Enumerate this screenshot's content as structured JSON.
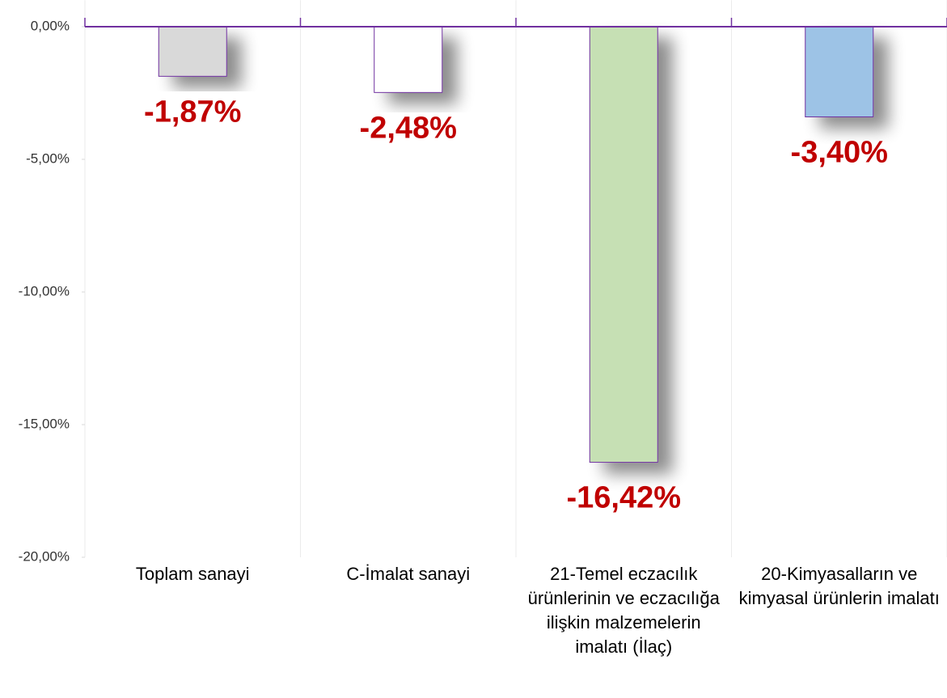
{
  "chart_data": {
    "type": "bar",
    "categories": [
      "Toplam sanayi",
      "C-İmalat sanayi",
      "21-Temel eczacılık ürünlerinin ve eczacılığa ilişkin malzemelerin imalatı (İlaç)",
      "20-Kimyasalların ve kimyasal ürünlerin imalatı"
    ],
    "values": [
      -1.87,
      -2.48,
      -16.42,
      -3.4
    ],
    "value_labels": [
      "-1,87%",
      "-2,48%",
      "-16,42%",
      "-3,40%"
    ],
    "colors": [
      "#d9d9d9",
      "#ffffff",
      "#c6e0b4",
      "#9dc3e6"
    ],
    "ylim": [
      -20,
      1
    ],
    "yticks": [
      {
        "value": 0,
        "label": "0,00%"
      },
      {
        "value": -5,
        "label": "-5,00%"
      },
      {
        "value": -10,
        "label": "-10,00%"
      },
      {
        "value": -15,
        "label": "-15,00%"
      },
      {
        "value": -20,
        "label": "-20,00%"
      }
    ],
    "grid": true
  }
}
